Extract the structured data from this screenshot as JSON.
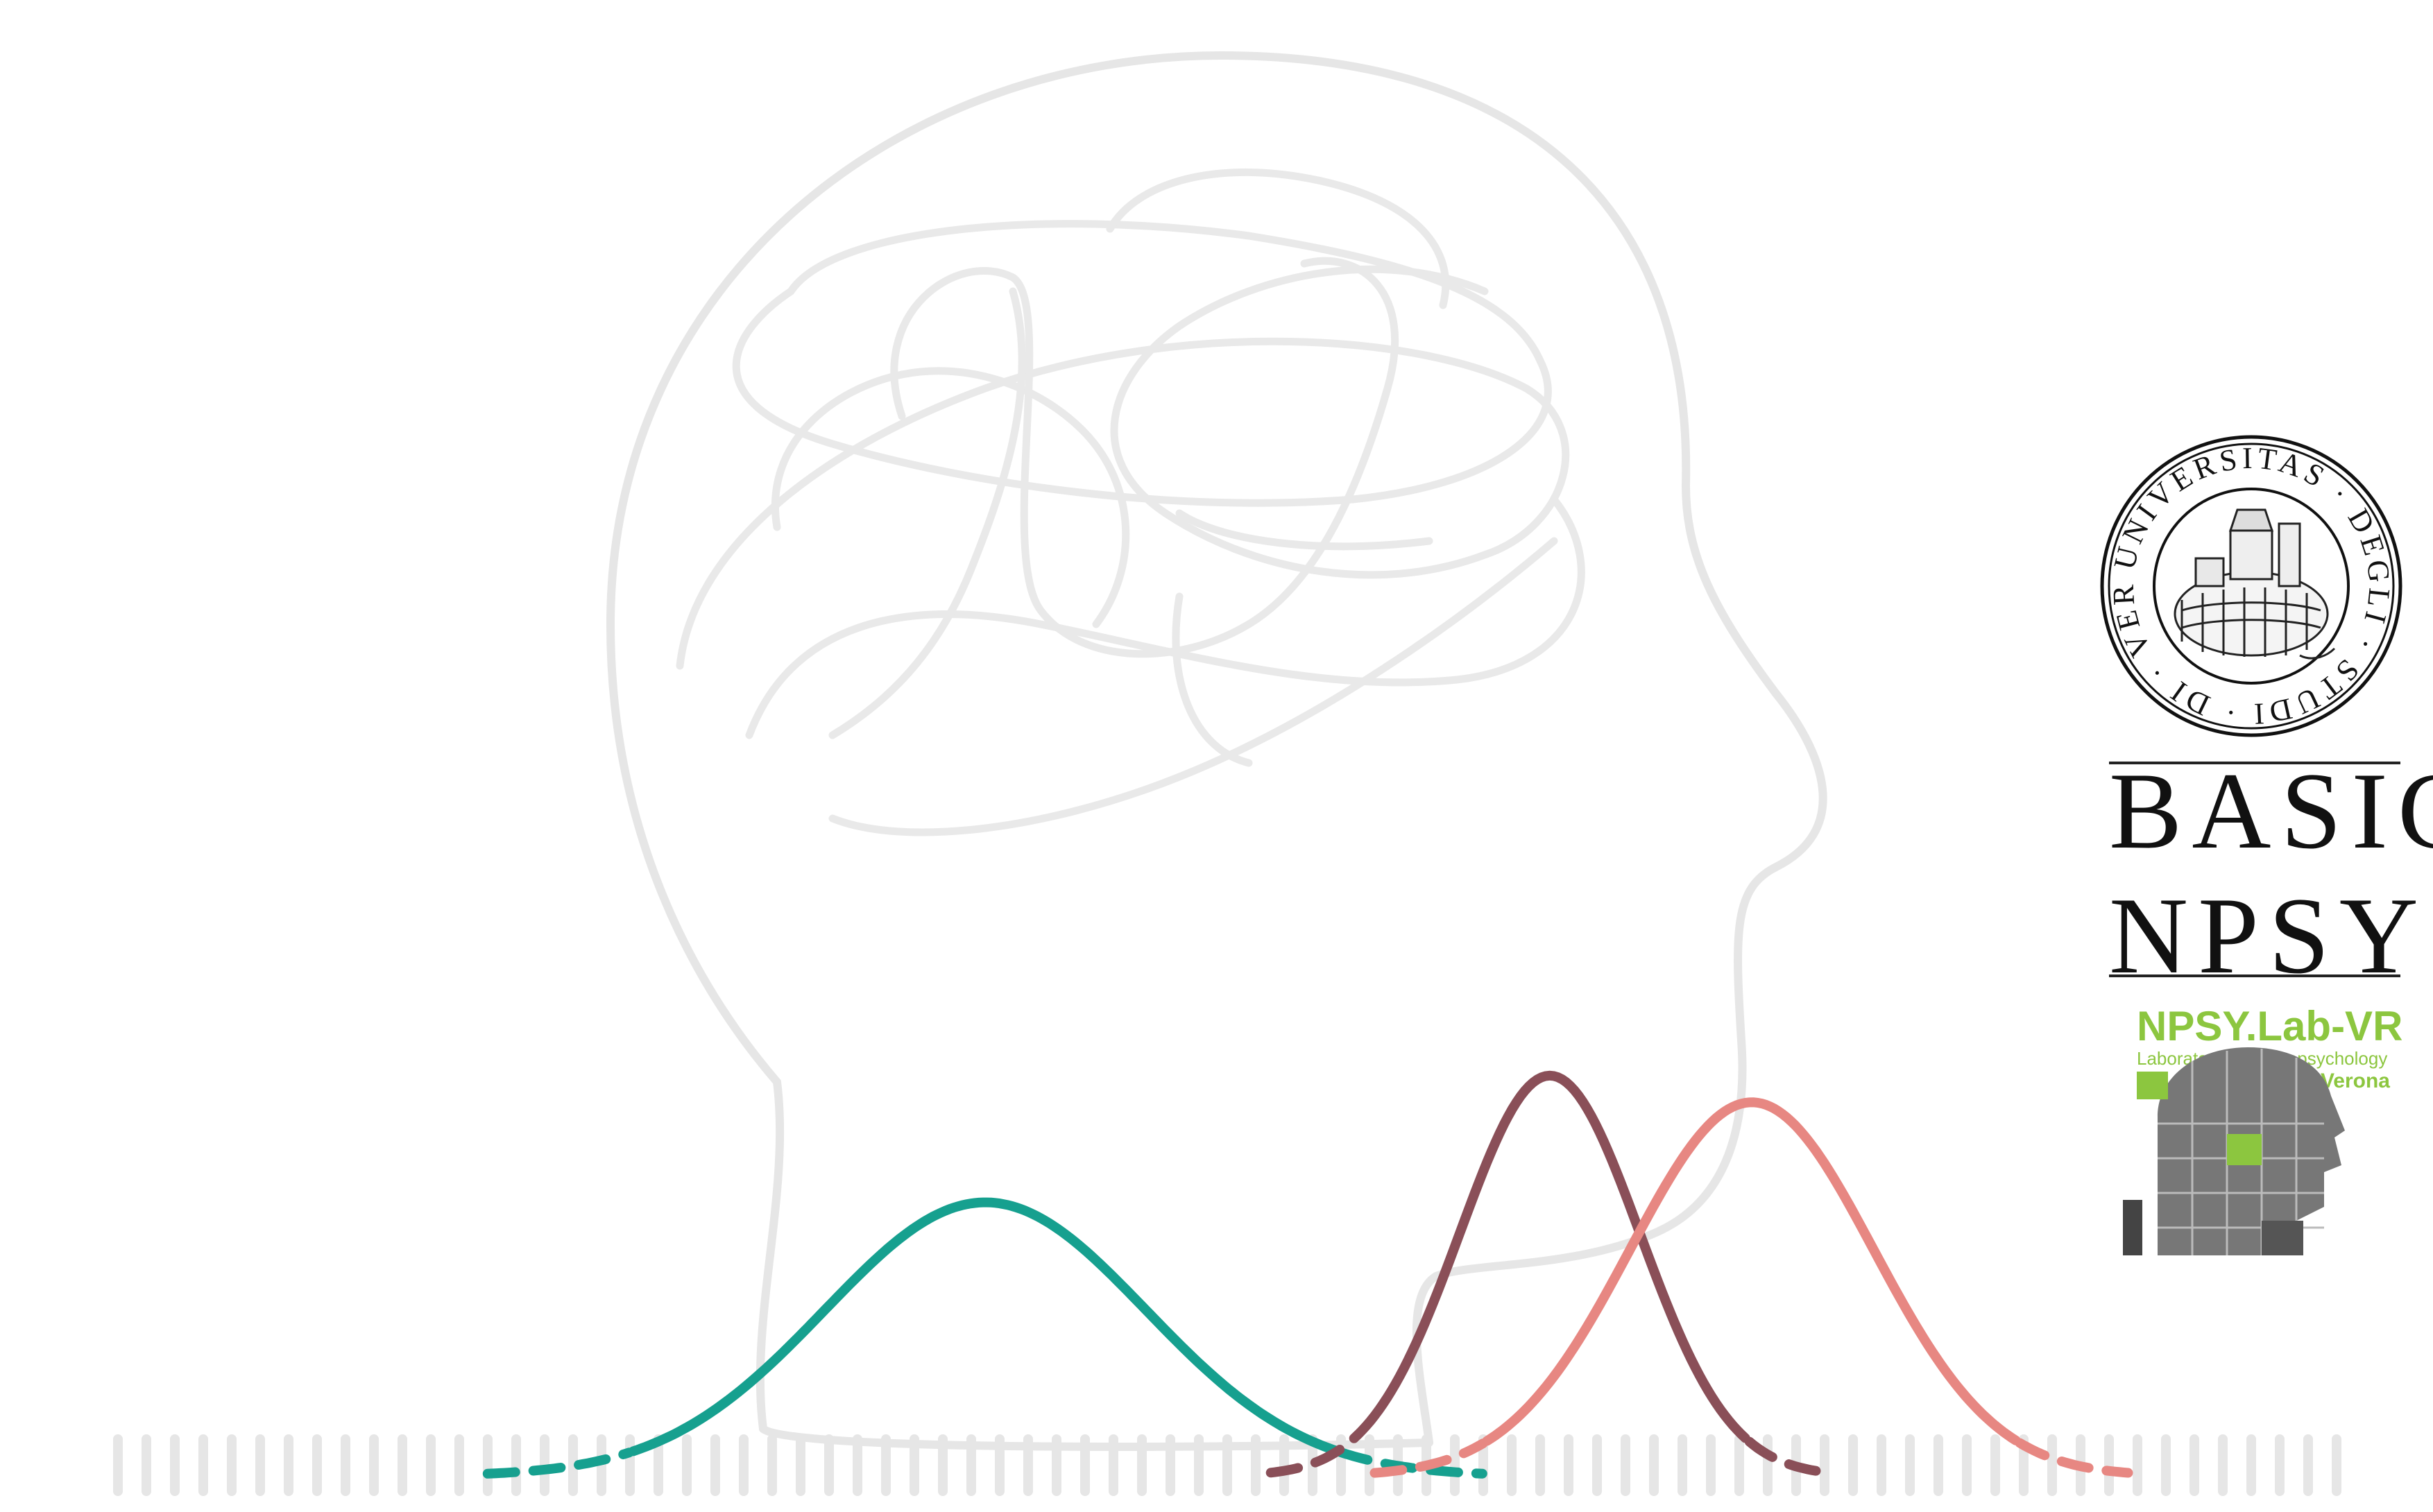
{
  "branding": {
    "seal_text": "UNIVERSITAS · DEGLI · STUDI · DI · VERONA",
    "wordmark_line1": "BASIC",
    "wordmark_line2": "NPSY",
    "lab_name": "NPSY.Lab-VR",
    "lab_subtitle": "Laboratory of Neuropsychology",
    "lab_city": "Verona"
  },
  "curves": [
    {
      "color": "#16a08f",
      "mean": 0.405,
      "peak": 0.82,
      "sd": 0.066
    },
    {
      "color": "#8a4f58",
      "mean": 0.637,
      "peak": 1.2,
      "sd": 0.037
    },
    {
      "color": "#e78782",
      "mean": 0.72,
      "peak": 1.12,
      "sd": 0.05
    }
  ],
  "colors": {
    "background": "#ffffff",
    "ticks": "#e6e6e6",
    "head": "#e7e7e7"
  }
}
